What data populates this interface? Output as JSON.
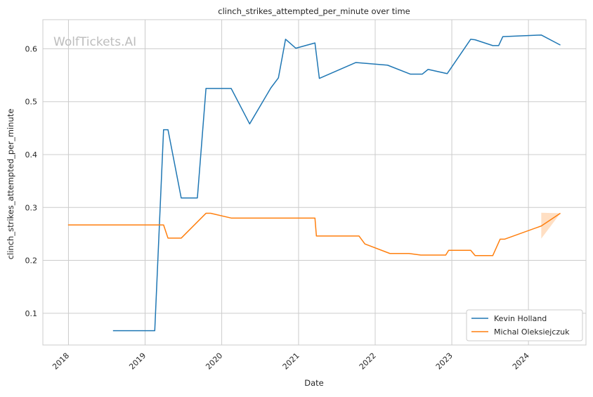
{
  "chart_data": {
    "type": "line",
    "title": "clinch_strikes_attempted_per_minute over time",
    "xlabel": "Date",
    "ylabel": "clinch_strikes_attempted_per_minute",
    "watermark": "WolfTickets.AI",
    "x_range": [
      "2017-09-01",
      "2024-10-01"
    ],
    "ylim": [
      0.04,
      0.655
    ],
    "x_ticks": [
      "2018",
      "2019",
      "2020",
      "2021",
      "2022",
      "2023",
      "2024"
    ],
    "y_ticks": [
      0.1,
      0.2,
      0.3,
      0.4,
      0.5,
      0.6
    ],
    "y_tick_labels": [
      "0.1",
      "0.2",
      "0.3",
      "0.4",
      "0.5",
      "0.6"
    ],
    "grid": true,
    "legend_position": "lower-right",
    "series": [
      {
        "name": "Kevin Holland",
        "color": "#1f77b4",
        "points": [
          [
            "2018-08-01",
            0.067
          ],
          [
            "2019-02-16",
            0.067
          ],
          [
            "2019-03-30",
            0.447
          ],
          [
            "2019-04-20",
            0.447
          ],
          [
            "2019-06-22",
            0.318
          ],
          [
            "2019-09-07",
            0.318
          ],
          [
            "2019-10-18",
            0.525
          ],
          [
            "2020-02-15",
            0.525
          ],
          [
            "2020-05-13",
            0.458
          ],
          [
            "2020-08-22",
            0.526
          ],
          [
            "2020-09-27",
            0.545
          ],
          [
            "2020-10-31",
            0.618
          ],
          [
            "2020-12-19",
            0.601
          ],
          [
            "2021-03-20",
            0.611
          ],
          [
            "2021-04-10",
            0.544
          ],
          [
            "2021-10-01",
            0.574
          ],
          [
            "2022-03-01",
            0.569
          ],
          [
            "2022-06-18",
            0.552
          ],
          [
            "2022-08-13",
            0.552
          ],
          [
            "2022-09-10",
            0.561
          ],
          [
            "2022-12-10",
            0.553
          ],
          [
            "2023-04-01",
            0.618
          ],
          [
            "2023-04-22",
            0.617
          ],
          [
            "2023-07-15",
            0.606
          ],
          [
            "2023-08-12",
            0.606
          ],
          [
            "2023-09-01",
            0.623
          ],
          [
            "2024-03-02",
            0.626
          ],
          [
            "2024-06-01",
            0.607
          ]
        ]
      },
      {
        "name": "Michal Oleksiejczuk",
        "color": "#ff7f0e",
        "band": {
          "x": [
            "2024-03-02",
            "2024-06-01"
          ],
          "lower": [
            0.241,
            0.289
          ],
          "upper": [
            0.29,
            0.289
          ]
        },
        "points": [
          [
            "2017-12-30",
            0.267
          ],
          [
            "2019-03-30",
            0.267
          ],
          [
            "2019-04-20",
            0.242
          ],
          [
            "2019-06-22",
            0.242
          ],
          [
            "2019-10-18",
            0.289
          ],
          [
            "2019-11-09",
            0.289
          ],
          [
            "2020-02-15",
            0.28
          ],
          [
            "2021-03-20",
            0.28
          ],
          [
            "2021-03-27",
            0.246
          ],
          [
            "2021-10-16",
            0.246
          ],
          [
            "2021-11-13",
            0.231
          ],
          [
            "2022-03-12",
            0.213
          ],
          [
            "2022-06-11",
            0.213
          ],
          [
            "2022-08-06",
            0.21
          ],
          [
            "2022-12-03",
            0.21
          ],
          [
            "2022-12-17",
            0.219
          ],
          [
            "2023-04-01",
            0.219
          ],
          [
            "2023-04-22",
            0.209
          ],
          [
            "2023-07-15",
            0.209
          ],
          [
            "2023-08-19",
            0.24
          ],
          [
            "2023-09-09",
            0.24
          ],
          [
            "2024-03-02",
            0.265
          ],
          [
            "2024-06-01",
            0.289
          ]
        ]
      }
    ]
  }
}
